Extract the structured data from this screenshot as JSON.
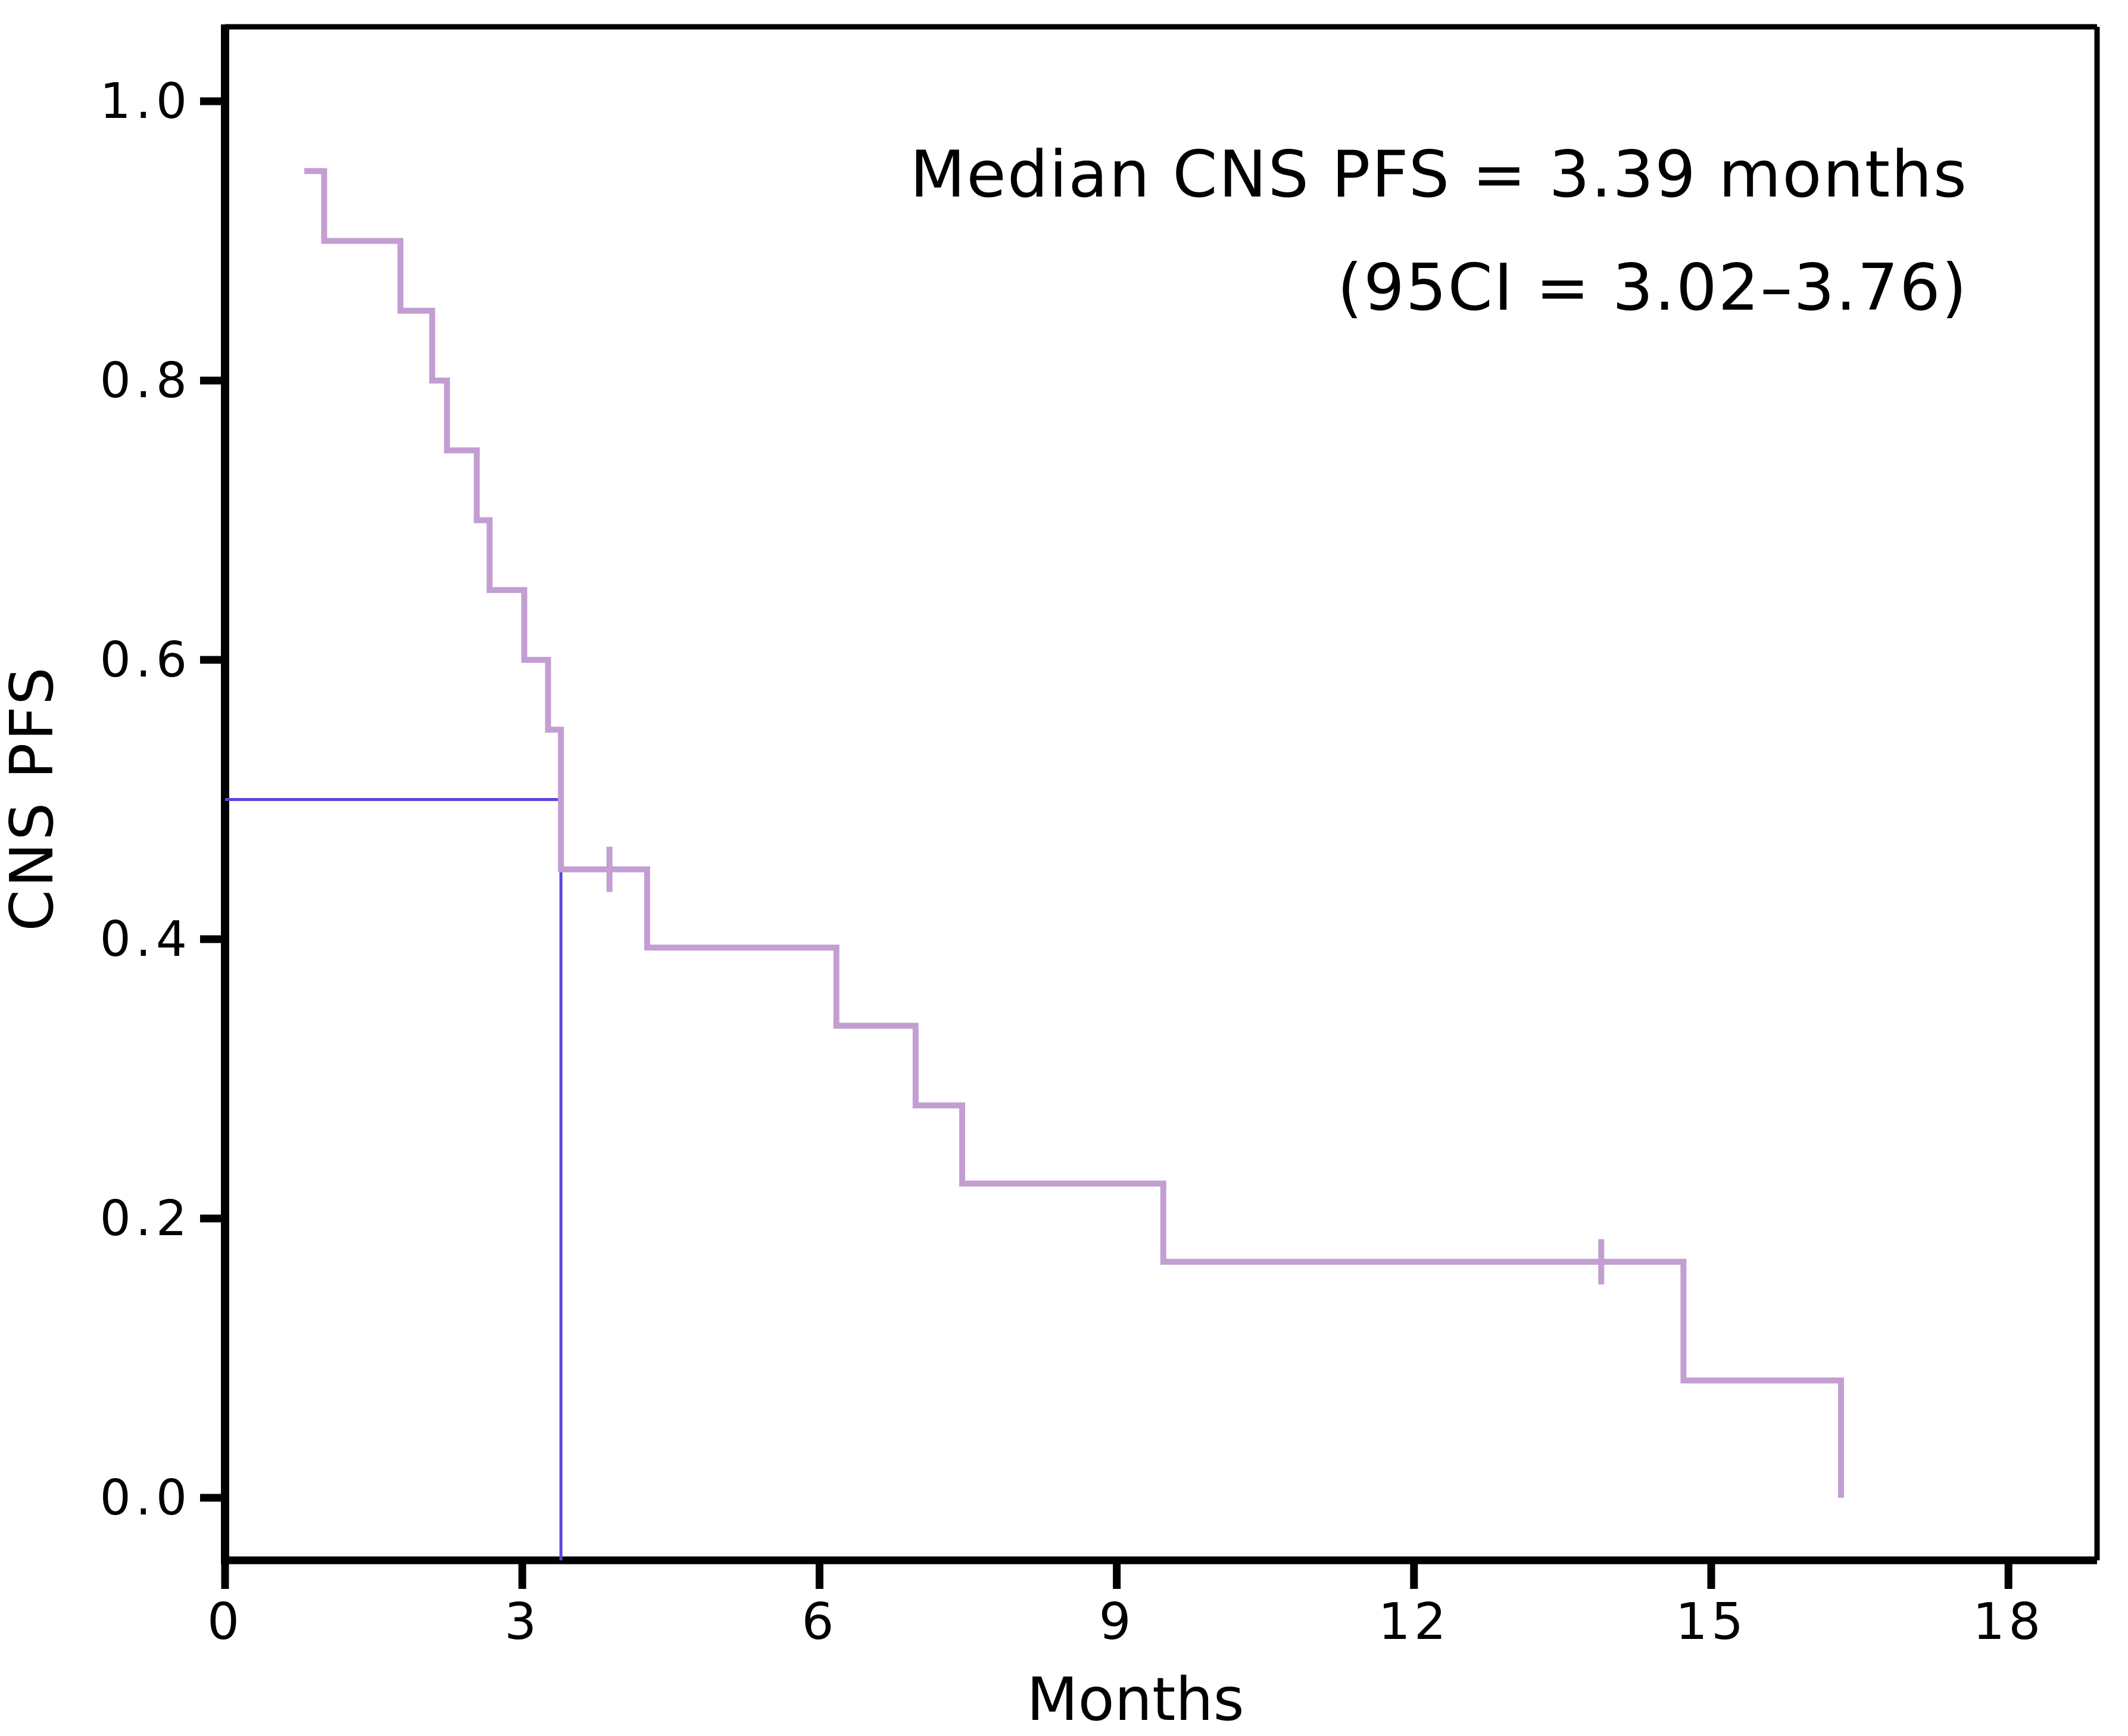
{
  "figure": {
    "background": "#ffffff",
    "annotation": {
      "line1": "Median CNS PFS = 3.39 months",
      "line2": "(95CI = 3.02–3.76)"
    },
    "axes": {
      "x_title": "Months",
      "y_title": "CNS PFS"
    },
    "colors": {
      "curve": "#c39ed2",
      "median_reference": "#5a46dc",
      "axis": "#000000"
    }
  },
  "chart_data": {
    "type": "line",
    "subtype": "kaplan-meier-step",
    "title": "Median CNS PFS = 3.39 months (95CI = 3.02–3.76)",
    "xlabel": "Months",
    "ylabel": "CNS PFS",
    "xlim": [
      0,
      18.9
    ],
    "ylim": [
      0.0,
      1.0
    ],
    "grid": false,
    "legend": "none",
    "x_ticks": [
      {
        "value": 0,
        "label": "0"
      },
      {
        "value": 3,
        "label": "3"
      },
      {
        "value": 6,
        "label": "6"
      },
      {
        "value": 9,
        "label": "9"
      },
      {
        "value": 12,
        "label": "12"
      },
      {
        "value": 15,
        "label": "15"
      },
      {
        "value": 18,
        "label": "18"
      }
    ],
    "y_ticks": [
      {
        "value": 0.0,
        "label": "0.0"
      },
      {
        "value": 0.2,
        "label": "0.2"
      },
      {
        "value": 0.4,
        "label": "0.4"
      },
      {
        "value": 0.6,
        "label": "0.6"
      },
      {
        "value": 0.8,
        "label": "0.8"
      },
      {
        "value": 1.0,
        "label": "1.0"
      }
    ],
    "series": [
      {
        "name": "CNS PFS",
        "color": "#c39ed2",
        "step_points": [
          [
            0.8,
            0.95
          ],
          [
            1.0,
            0.95
          ],
          [
            1.0,
            0.9
          ],
          [
            1.77,
            0.9
          ],
          [
            1.77,
            0.85
          ],
          [
            2.09,
            0.85
          ],
          [
            2.09,
            0.8
          ],
          [
            2.24,
            0.8
          ],
          [
            2.24,
            0.75
          ],
          [
            2.54,
            0.75
          ],
          [
            2.54,
            0.7
          ],
          [
            2.67,
            0.7
          ],
          [
            2.67,
            0.65
          ],
          [
            3.02,
            0.65
          ],
          [
            3.02,
            0.6
          ],
          [
            3.26,
            0.6
          ],
          [
            3.26,
            0.55
          ],
          [
            3.39,
            0.55
          ],
          [
            3.39,
            0.45
          ],
          [
            4.26,
            0.45
          ],
          [
            4.26,
            0.394
          ],
          [
            6.17,
            0.394
          ],
          [
            6.17,
            0.338
          ],
          [
            6.97,
            0.338
          ],
          [
            6.97,
            0.281
          ],
          [
            7.44,
            0.281
          ],
          [
            7.44,
            0.225
          ],
          [
            9.47,
            0.225
          ],
          [
            9.47,
            0.169
          ],
          [
            14.72,
            0.169
          ],
          [
            14.72,
            0.084
          ],
          [
            16.31,
            0.084
          ],
          [
            16.31,
            0.0
          ]
        ]
      }
    ],
    "censor_marks": [
      {
        "x": 3.88,
        "y": 0.45
      },
      {
        "x": 13.89,
        "y": 0.169
      }
    ],
    "median_reference": {
      "time": 3.39,
      "survival": 0.5,
      "color": "#5a46dc"
    }
  }
}
